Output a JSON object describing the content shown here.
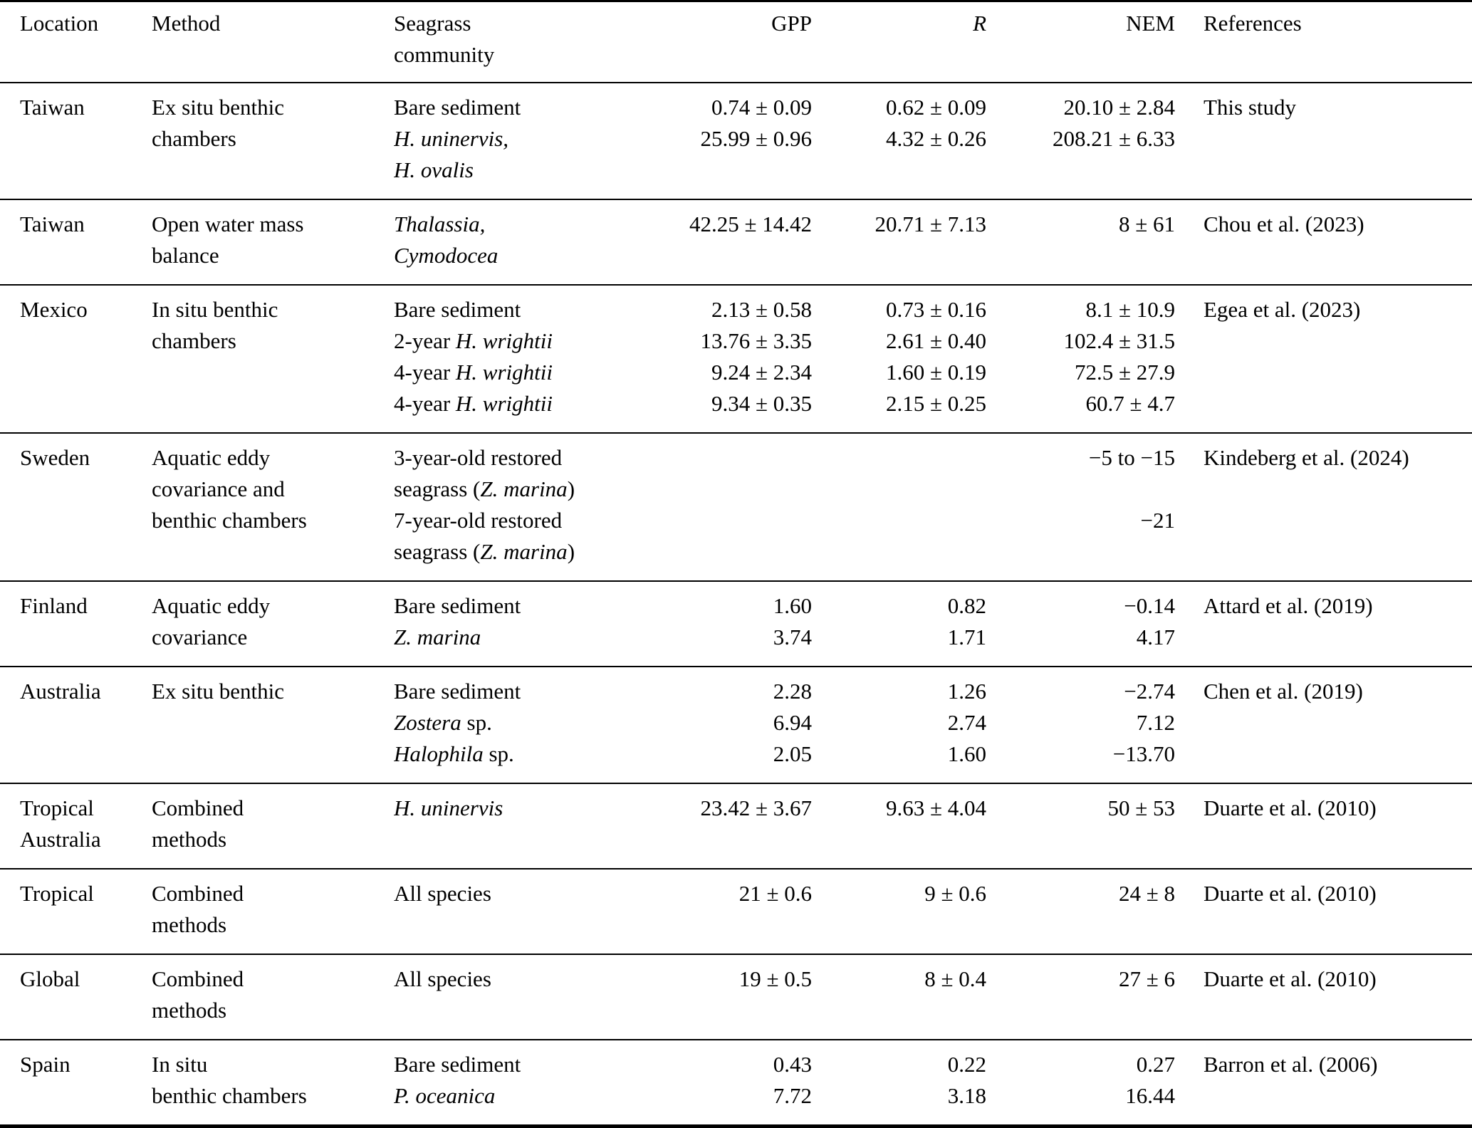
{
  "colors": {
    "background": "#ffffff",
    "text": "#000000",
    "rule": "#000000"
  },
  "table": {
    "columns": [
      {
        "key": "location",
        "label": "Location"
      },
      {
        "key": "method",
        "label": "Method"
      },
      {
        "key": "community",
        "label": [
          "Seagrass",
          "community"
        ]
      },
      {
        "key": "gpp",
        "label": "GPP"
      },
      {
        "key": "r",
        "label": "R",
        "italic": true
      },
      {
        "key": "nem",
        "label": "NEM"
      },
      {
        "key": "reference",
        "label": "References"
      }
    ],
    "rows": [
      {
        "location": [
          "Taiwan"
        ],
        "method": [
          "Ex situ benthic",
          "chambers"
        ],
        "community": [
          [
            {
              "t": "Bare sediment"
            }
          ],
          [
            {
              "t": "H. uninervis,",
              "i": true
            }
          ],
          [
            {
              "t": "H. ovalis",
              "i": true
            }
          ]
        ],
        "gpp": [
          "0.74 ± 0.09",
          "25.99 ± 0.96"
        ],
        "r": [
          "0.62 ± 0.09",
          "4.32 ± 0.26"
        ],
        "nem": [
          "20.10 ± 2.84",
          "208.21 ± 6.33"
        ],
        "reference": "This study"
      },
      {
        "location": [
          "Taiwan"
        ],
        "method": [
          "Open water mass",
          "balance"
        ],
        "community": [
          [
            {
              "t": "Thalassia,",
              "i": true
            }
          ],
          [
            {
              "t": "Cymodocea",
              "i": true
            }
          ]
        ],
        "gpp": [
          "42.25 ± 14.42"
        ],
        "r": [
          "20.71 ± 7.13"
        ],
        "nem": [
          "8 ± 61"
        ],
        "reference": "Chou et al. (2023)"
      },
      {
        "location": [
          "Mexico"
        ],
        "method": [
          "In situ benthic",
          "chambers"
        ],
        "community": [
          [
            {
              "t": "Bare sediment"
            }
          ],
          [
            {
              "t": "2-year "
            },
            {
              "t": "H. wrightii",
              "i": true
            }
          ],
          [
            {
              "t": "4-year "
            },
            {
              "t": "H. wrightii",
              "i": true
            }
          ],
          [
            {
              "t": "4-year "
            },
            {
              "t": "H. wrightii",
              "i": true
            }
          ]
        ],
        "gpp": [
          "2.13 ± 0.58",
          "13.76 ± 3.35",
          "9.24 ± 2.34",
          "9.34 ± 0.35"
        ],
        "r": [
          "0.73 ± 0.16",
          "2.61 ± 0.40",
          "1.60 ± 0.19",
          "2.15 ± 0.25"
        ],
        "nem": [
          "8.1 ± 10.9",
          "102.4 ± 31.5",
          "72.5 ± 27.9",
          "60.7 ± 4.7"
        ],
        "reference": "Egea et al. (2023)"
      },
      {
        "location": [
          "Sweden"
        ],
        "method": [
          "Aquatic eddy",
          "covariance and",
          "benthic chambers"
        ],
        "community": [
          [
            {
              "t": "3-year-old restored"
            }
          ],
          [
            {
              "t": "seagrass ("
            },
            {
              "t": "Z. marina",
              "i": true
            },
            {
              "t": ")"
            }
          ],
          [
            {
              "t": "7-year-old restored"
            }
          ],
          [
            {
              "t": "seagrass ("
            },
            {
              "t": "Z. marina",
              "i": true
            },
            {
              "t": ")"
            }
          ]
        ],
        "gpp": [],
        "r": [],
        "nem": [
          "−5 to −15",
          "",
          "−21"
        ],
        "reference": "Kindeberg et al. (2024)"
      },
      {
        "location": [
          "Finland"
        ],
        "method": [
          "Aquatic eddy",
          "covariance"
        ],
        "community": [
          [
            {
              "t": "Bare sediment"
            }
          ],
          [
            {
              "t": "Z. marina",
              "i": true
            }
          ]
        ],
        "gpp": [
          "1.60",
          "3.74"
        ],
        "r": [
          "0.82",
          "1.71"
        ],
        "nem": [
          "−0.14",
          "4.17"
        ],
        "reference": "Attard et al. (2019)"
      },
      {
        "location": [
          "Australia"
        ],
        "method": [
          "Ex situ benthic"
        ],
        "community": [
          [
            {
              "t": "Bare sediment"
            }
          ],
          [
            {
              "t": "Zostera",
              "i": true
            },
            {
              "t": " sp."
            }
          ],
          [
            {
              "t": "Halophila",
              "i": true
            },
            {
              "t": " sp."
            }
          ]
        ],
        "gpp": [
          "2.28",
          "6.94",
          "2.05"
        ],
        "r": [
          "1.26",
          "2.74",
          "1.60"
        ],
        "nem": [
          "−2.74",
          "7.12",
          "−13.70"
        ],
        "reference": "Chen et al. (2019)"
      },
      {
        "location": [
          "Tropical",
          "Australia"
        ],
        "method": [
          "Combined",
          "methods"
        ],
        "community": [
          [
            {
              "t": "H. uninervis",
              "i": true
            }
          ]
        ],
        "gpp": [
          "23.42 ± 3.67"
        ],
        "r": [
          "9.63 ± 4.04"
        ],
        "nem": [
          "50 ± 53"
        ],
        "reference": "Duarte et al. (2010)"
      },
      {
        "location": [
          "Tropical"
        ],
        "method": [
          "Combined",
          "methods"
        ],
        "community": [
          [
            {
              "t": "All species"
            }
          ]
        ],
        "gpp": [
          "21 ± 0.6"
        ],
        "r": [
          "9 ± 0.6"
        ],
        "nem": [
          "24 ± 8"
        ],
        "reference": "Duarte et al. (2010)"
      },
      {
        "location": [
          "Global"
        ],
        "method": [
          "Combined",
          "methods"
        ],
        "community": [
          [
            {
              "t": "All species"
            }
          ]
        ],
        "gpp": [
          "19 ± 0.5"
        ],
        "r": [
          "8 ± 0.4"
        ],
        "nem": [
          "27 ± 6"
        ],
        "reference": "Duarte et al. (2010)"
      },
      {
        "location": [
          "Spain"
        ],
        "method": [
          "In situ",
          "benthic chambers"
        ],
        "community": [
          [
            {
              "t": "Bare sediment"
            }
          ],
          [
            {
              "t": "P. oceanica",
              "i": true
            }
          ]
        ],
        "gpp": [
          "0.43",
          "7.72"
        ],
        "r": [
          "0.22",
          "3.18"
        ],
        "nem": [
          "0.27",
          "16.44"
        ],
        "reference": "Barron et al. (2006)"
      }
    ]
  }
}
